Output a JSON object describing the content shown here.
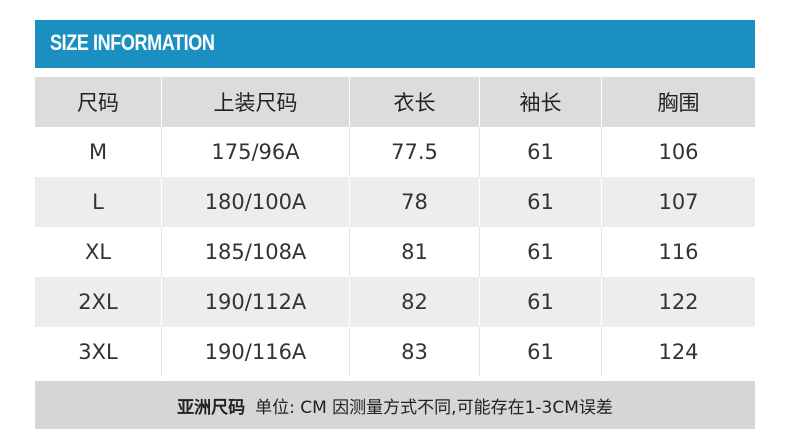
{
  "header": {
    "title": "SIZE INFORMATION",
    "accent_color": "#1a8fc2"
  },
  "table": {
    "columns": [
      "尺码",
      "上装尺码",
      "衣长",
      "袖长",
      "胸围"
    ],
    "rows": [
      [
        "M",
        "175/96A",
        "77.5",
        "61",
        "106"
      ],
      [
        "L",
        "180/100A",
        "78",
        "61",
        "107"
      ],
      [
        "XL",
        "185/108A",
        "81",
        "61",
        "116"
      ],
      [
        "2XL",
        "190/112A",
        "82",
        "61",
        "122"
      ],
      [
        "3XL",
        "190/116A",
        "83",
        "61",
        "124"
      ]
    ]
  },
  "footer": {
    "label": "亚洲尺码",
    "note": "单位: CM  因测量方式不同,可能存在1-3CM误差"
  }
}
